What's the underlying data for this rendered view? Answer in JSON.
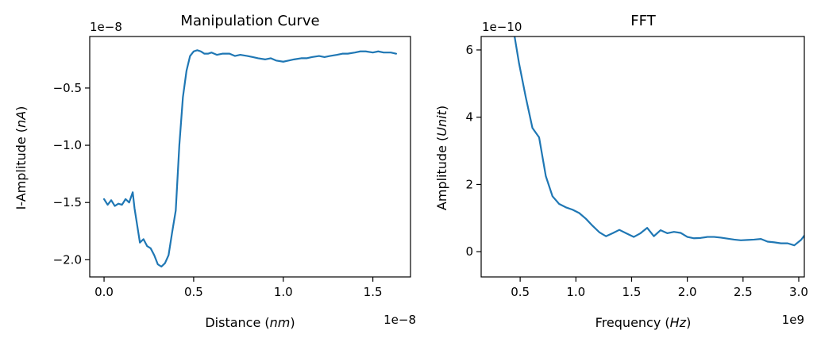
{
  "colors": {
    "series": "#1f77b4",
    "axis": "#000000",
    "background": "#ffffff"
  },
  "chart_data": [
    {
      "type": "line",
      "title": "Manipulation Curve",
      "xlabel": "Distance ($nm$)",
      "xlabel_parts": [
        "Distance (",
        "nm",
        ")"
      ],
      "ylabel": "I-Amplitude ($nA$)",
      "ylabel_parts": [
        "I-Amplitude (",
        "nA",
        ")"
      ],
      "x_offset_text": "1e−8",
      "y_offset_text": "1e−8",
      "x_units_note": "x values in units of 1e-8",
      "y_units_note": "y values in units of 1e-8",
      "xlim": [
        -0.08,
        1.71
      ],
      "ylim": [
        -2.15,
        -0.05
      ],
      "xticks": [
        0.0,
        0.5,
        1.0,
        1.5
      ],
      "xtick_labels": [
        "0.0",
        "0.5",
        "1.0",
        "1.5"
      ],
      "yticks": [
        -0.5,
        -1.0,
        -1.5,
        -2.0
      ],
      "ytick_labels": [
        "−0.5",
        "−1.0",
        "−1.5",
        "−2.0"
      ],
      "grid": false,
      "series": [
        {
          "x": [
            0.0,
            0.02,
            0.04,
            0.06,
            0.08,
            0.1,
            0.12,
            0.14,
            0.16,
            0.17,
            0.2,
            0.22,
            0.24,
            0.26,
            0.28,
            0.3,
            0.32,
            0.34,
            0.36,
            0.38,
            0.4,
            0.42,
            0.44,
            0.46,
            0.48,
            0.5,
            0.52,
            0.54,
            0.56,
            0.58,
            0.6,
            0.63,
            0.66,
            0.7,
            0.73,
            0.76,
            0.8,
            0.83,
            0.86,
            0.9,
            0.93,
            0.96,
            1.0,
            1.03,
            1.06,
            1.1,
            1.13,
            1.16,
            1.2,
            1.23,
            1.26,
            1.3,
            1.33,
            1.36,
            1.4,
            1.43,
            1.46,
            1.5,
            1.53,
            1.56,
            1.6,
            1.63
          ],
          "y": [
            -1.47,
            -1.52,
            -1.48,
            -1.53,
            -1.51,
            -1.52,
            -1.47,
            -1.5,
            -1.41,
            -1.55,
            -1.85,
            -1.82,
            -1.88,
            -1.9,
            -1.96,
            -2.04,
            -2.06,
            -2.03,
            -1.96,
            -1.76,
            -1.57,
            -1.0,
            -0.58,
            -0.35,
            -0.22,
            -0.18,
            -0.17,
            -0.18,
            -0.2,
            -0.2,
            -0.19,
            -0.21,
            -0.2,
            -0.2,
            -0.22,
            -0.21,
            -0.22,
            -0.23,
            -0.24,
            -0.25,
            -0.24,
            -0.26,
            -0.27,
            -0.26,
            -0.25,
            -0.24,
            -0.24,
            -0.23,
            -0.22,
            -0.23,
            -0.22,
            -0.21,
            -0.2,
            -0.2,
            -0.19,
            -0.18,
            -0.18,
            -0.19,
            -0.18,
            -0.19,
            -0.19,
            -0.2
          ]
        }
      ]
    },
    {
      "type": "line",
      "title": "FFT",
      "xlabel": "Frequency ($Hz$)",
      "xlabel_parts": [
        "Frequency (",
        "Hz",
        ")"
      ],
      "ylabel": "Amplitude ($Unit$)",
      "ylabel_parts": [
        "Amplitude (",
        "Unit",
        ")"
      ],
      "x_offset_text": "1e9",
      "y_offset_text": "1e−10",
      "x_units_note": "x values in units of 1e9",
      "y_units_note": "y values in units of 1e-10",
      "xlim": [
        0.15,
        3.05
      ],
      "ylim": [
        -0.75,
        6.4
      ],
      "xticks": [
        0.5,
        1.0,
        1.5,
        2.0,
        2.5,
        3.0
      ],
      "xtick_labels": [
        "0.5",
        "1.0",
        "1.5",
        "2.0",
        "2.5",
        "3.0"
      ],
      "yticks": [
        0,
        2,
        4,
        6
      ],
      "ytick_labels": [
        "0",
        "2",
        "4",
        "6"
      ],
      "grid": false,
      "series": [
        {
          "x": [
            0.45,
            0.49,
            0.55,
            0.61,
            0.67,
            0.73,
            0.79,
            0.85,
            0.91,
            0.97,
            1.03,
            1.09,
            1.15,
            1.21,
            1.27,
            1.33,
            1.39,
            1.45,
            1.52,
            1.58,
            1.64,
            1.7,
            1.76,
            1.82,
            1.88,
            1.94,
            2.0,
            2.06,
            2.12,
            2.18,
            2.24,
            2.3,
            2.36,
            2.42,
            2.48,
            2.54,
            2.6,
            2.66,
            2.72,
            2.78,
            2.84,
            2.9,
            2.96,
            3.02,
            3.05
          ],
          "y": [
            6.4,
            5.6,
            4.6,
            3.68,
            3.4,
            2.25,
            1.65,
            1.42,
            1.32,
            1.25,
            1.15,
            0.98,
            0.77,
            0.58,
            0.46,
            0.55,
            0.65,
            0.55,
            0.44,
            0.55,
            0.71,
            0.46,
            0.64,
            0.55,
            0.59,
            0.56,
            0.44,
            0.4,
            0.41,
            0.44,
            0.44,
            0.42,
            0.39,
            0.36,
            0.34,
            0.35,
            0.36,
            0.38,
            0.3,
            0.28,
            0.25,
            0.25,
            0.19,
            0.35,
            0.48
          ]
        }
      ]
    }
  ]
}
